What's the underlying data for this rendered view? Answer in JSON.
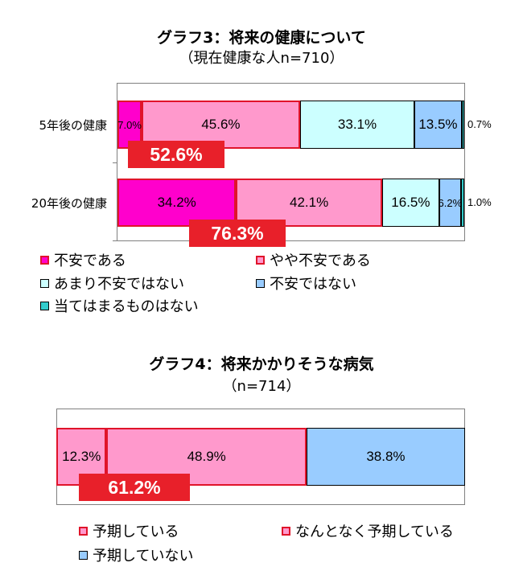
{
  "charts": [
    {
      "title": "グラフ3：将来の健康について",
      "subtitle": "（現在健康な人n=710）",
      "chart_data": {
        "type": "bar",
        "orientation": "horizontal",
        "stacked": true,
        "categories": [
          "5年後の健康",
          "20年後の健康"
        ],
        "series": [
          {
            "name": "不安である",
            "values": [
              7.0,
              34.2
            ]
          },
          {
            "name": "やや不安である",
            "values": [
              45.6,
              42.1
            ]
          },
          {
            "name": "あまり不安ではない",
            "values": [
              33.1,
              16.5
            ]
          },
          {
            "name": "不安ではない",
            "values": [
              13.5,
              6.2
            ]
          },
          {
            "name": "当てはまるものはない",
            "values": [
              0.7,
              1.0
            ]
          }
        ],
        "value_labels": [
          [
            "7.0%",
            "45.6%",
            "33.1%",
            "13.5%",
            "0.7%"
          ],
          [
            "34.2%",
            "42.1%",
            "16.5%",
            "6.2%",
            "1.0%"
          ]
        ],
        "sum_labels": [
          "52.6%",
          "76.3%"
        ],
        "xlim": [
          0,
          100
        ],
        "legend_position": "bottom"
      },
      "colors": [
        "#ff00cc",
        "#ff99cc",
        "#ccffff",
        "#99ccff",
        "#33cccc"
      ],
      "red_border": [
        true,
        true,
        false,
        false,
        false
      ]
    },
    {
      "title": "グラフ4：将来かかりそうな病気",
      "subtitle": "（n=714）",
      "chart_data": {
        "type": "bar",
        "orientation": "horizontal",
        "stacked": true,
        "categories": [
          ""
        ],
        "series": [
          {
            "name": "予期している",
            "values": [
              12.3
            ]
          },
          {
            "name": "なんとなく予期している",
            "values": [
              48.9
            ]
          },
          {
            "name": "予期していない",
            "values": [
              38.8
            ]
          }
        ],
        "value_labels": [
          [
            "12.3%",
            "48.9%",
            "38.8%"
          ]
        ],
        "sum_labels": [
          "61.2%"
        ],
        "xlim": [
          0,
          100
        ],
        "legend_position": "bottom"
      },
      "colors": [
        "#ff99cc",
        "#ff99cc",
        "#99ccff"
      ],
      "red_border": [
        true,
        true,
        false
      ]
    }
  ]
}
